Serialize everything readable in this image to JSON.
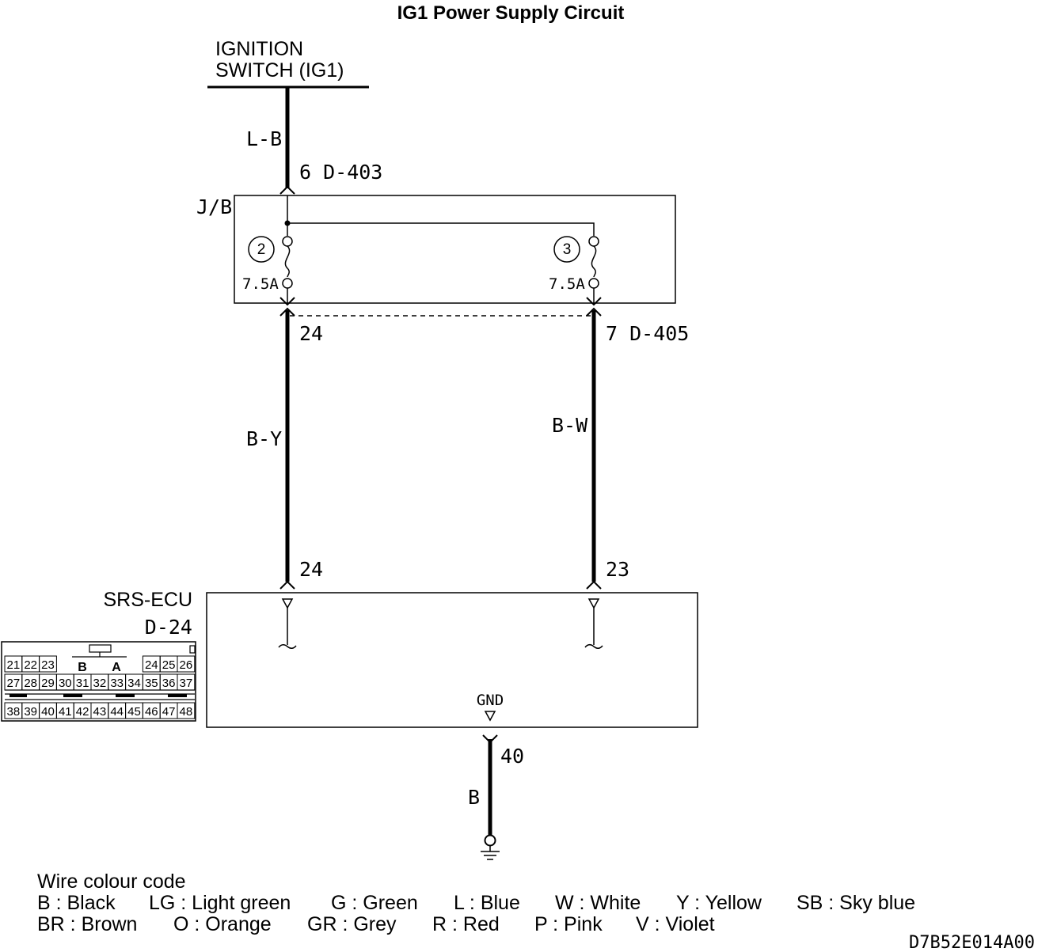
{
  "title": "IG1 Power Supply Circuit",
  "ignition": {
    "line1": "IGNITION",
    "line2": "SWITCH (IG1)"
  },
  "wires": {
    "top": "L-B",
    "left": "B-Y",
    "right": "B-W",
    "ground": "B"
  },
  "connectors": {
    "jb_in": "6 D-403",
    "jb_out_left": "24",
    "jb_out_right": "7 D-405",
    "ecu_left": "24",
    "ecu_right": "23",
    "ground_pin": "40"
  },
  "junction_block": {
    "label": "J/B",
    "fuses": [
      {
        "number": "2",
        "rating": "7.5A"
      },
      {
        "number": "3",
        "rating": "7.5A"
      }
    ]
  },
  "ecu": {
    "name": "SRS-ECU",
    "connector": "D-24",
    "gnd_label": "GND"
  },
  "connector_face": {
    "row1_left": [
      "21",
      "22",
      "23"
    ],
    "row1_keys": [
      "B",
      "A"
    ],
    "row1_right": [
      "24",
      "25",
      "26"
    ],
    "row2": [
      "27",
      "28",
      "29",
      "30",
      "31",
      "32",
      "33",
      "34",
      "35",
      "36",
      "37"
    ],
    "row3": [
      "38",
      "39",
      "40",
      "41",
      "42",
      "43",
      "44",
      "45",
      "46",
      "47",
      "48"
    ]
  },
  "legend": {
    "heading": "Wire colour code",
    "row1": [
      "B : Black",
      "LG : Light green",
      "G : Green",
      "L : Blue",
      "W : White",
      "Y : Yellow",
      "SB : Sky blue"
    ],
    "row2": [
      "BR : Brown",
      "O : Orange",
      "GR : Grey",
      "R : Red",
      "P : Pink",
      "V : Violet"
    ]
  },
  "figure_code": "D7B52E014A00"
}
